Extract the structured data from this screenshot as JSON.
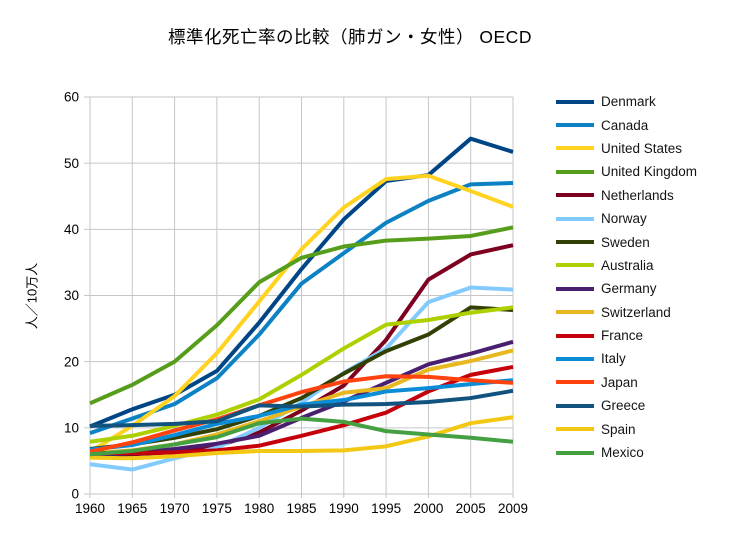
{
  "title": "標準化死亡率の比較（肺ガン・女性） OECD",
  "y_axis_label": "人／10万人",
  "chart_data": {
    "type": "line",
    "title": "標準化死亡率の比較（肺ガン・女性） OECD",
    "xlabel": "",
    "ylabel": "人／10万人",
    "categories": [
      "1960",
      "1965",
      "1970",
      "1975",
      "1980",
      "1985",
      "1990",
      "1995",
      "2000",
      "2005",
      "2009"
    ],
    "ylim": [
      0,
      60
    ],
    "ytick_step": 10,
    "grid": true,
    "legend_position": "right",
    "grid_color": "#c6c6c6",
    "tick_label_color": "#000000",
    "series": [
      {
        "name": "Denmark",
        "color": "#004586",
        "values": [
          10.2,
          12.8,
          15.0,
          18.6,
          25.9,
          34.0,
          41.5,
          47.3,
          48.2,
          53.7,
          51.7
        ]
      },
      {
        "name": "Canada",
        "color": "#0c82c5",
        "values": [
          9.2,
          11.4,
          13.6,
          17.5,
          24.1,
          31.8,
          36.4,
          41.0,
          44.3,
          46.8,
          47.0
        ]
      },
      {
        "name": "United States",
        "color": "#ffd320",
        "values": [
          6.4,
          10.3,
          14.8,
          21.3,
          29.1,
          37.0,
          43.3,
          47.6,
          48.1,
          45.8,
          43.4
        ]
      },
      {
        "name": "United Kingdom",
        "color": "#579d1c",
        "values": [
          13.7,
          16.5,
          20.0,
          25.5,
          32.0,
          35.7,
          37.4,
          38.3,
          38.6,
          39.0,
          40.3
        ]
      },
      {
        "name": "Netherlands",
        "color": "#7e0021",
        "values": [
          5.9,
          6.0,
          6.3,
          7.2,
          9.3,
          12.6,
          16.4,
          23.3,
          32.4,
          36.2,
          37.6
        ]
      },
      {
        "name": "Norway",
        "color": "#83caff",
        "values": [
          4.5,
          3.7,
          5.4,
          7.0,
          10.0,
          13.8,
          18.3,
          22.0,
          29.0,
          31.2,
          30.9
        ]
      },
      {
        "name": "Sweden",
        "color": "#314004",
        "values": [
          6.8,
          7.5,
          8.5,
          9.8,
          11.8,
          14.5,
          18.2,
          21.6,
          24.1,
          28.2,
          27.8
        ]
      },
      {
        "name": "Australia",
        "color": "#aecf00",
        "values": [
          7.9,
          8.8,
          10.3,
          12.0,
          14.3,
          18.0,
          22.0,
          25.6,
          26.3,
          27.4,
          28.2
        ]
      },
      {
        "name": "Germany",
        "color": "#4b1f6f",
        "values": [
          5.8,
          6.2,
          6.8,
          7.6,
          8.8,
          11.5,
          14.0,
          16.8,
          19.6,
          21.2,
          23.0
        ]
      },
      {
        "name": "Switzerland",
        "color": "#e8b820",
        "values": [
          6.1,
          6.6,
          7.5,
          9.0,
          11.0,
          13.2,
          15.3,
          16.0,
          18.8,
          20.1,
          21.7
        ]
      },
      {
        "name": "France",
        "color": "#c5000b",
        "values": [
          6.2,
          6.2,
          6.3,
          6.6,
          7.3,
          8.8,
          10.4,
          12.3,
          15.5,
          18.0,
          19.2
        ]
      },
      {
        "name": "Italy",
        "color": "#0a8cd7",
        "values": [
          6.7,
          7.4,
          8.9,
          10.6,
          11.8,
          13.5,
          14.2,
          15.5,
          16.0,
          16.6,
          17.2
        ]
      },
      {
        "name": "Japan",
        "color": "#ff420e",
        "values": [
          6.4,
          7.8,
          9.6,
          11.3,
          13.4,
          15.4,
          17.0,
          17.8,
          17.7,
          17.2,
          16.8
        ]
      },
      {
        "name": "Greece",
        "color": "#11537e",
        "values": [
          10.3,
          10.4,
          10.6,
          11.0,
          13.4,
          13.2,
          13.5,
          13.6,
          13.9,
          14.5,
          15.6
        ]
      },
      {
        "name": "Spain",
        "color": "#f3c814",
        "values": [
          5.5,
          5.4,
          5.7,
          6.2,
          6.5,
          6.5,
          6.6,
          7.2,
          8.7,
          10.7,
          11.6
        ]
      },
      {
        "name": "Mexico",
        "color": "#45a041",
        "values": [
          6.0,
          6.5,
          7.5,
          8.6,
          10.7,
          11.4,
          10.9,
          9.5,
          9.0,
          8.5,
          7.9
        ]
      }
    ]
  }
}
